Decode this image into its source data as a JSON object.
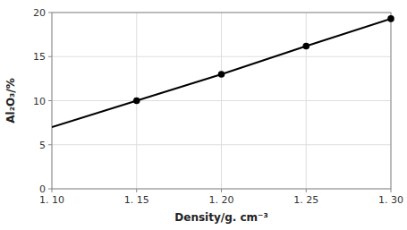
{
  "chart_data": {
    "type": "line",
    "x": [
      1.1,
      1.15,
      1.2,
      1.25,
      1.3
    ],
    "series": [
      {
        "type": "line",
        "color": "#000000",
        "line_style": "solid",
        "values": [
          7.0,
          10.0,
          13.0,
          16.2,
          19.3
        ]
      },
      {
        "type": "scatter",
        "color": "#000000",
        "marker": "circle",
        "values": [
          null,
          10.0,
          13.0,
          16.2,
          19.3
        ]
      }
    ],
    "xlim": [
      1.1,
      1.3
    ],
    "ylim": [
      0,
      20
    ],
    "xticks": [
      {
        "value": 1.1,
        "label": "1. 10"
      },
      {
        "value": 1.15,
        "label": "1. 15"
      },
      {
        "value": 1.2,
        "label": "1. 20"
      },
      {
        "value": 1.25,
        "label": "1. 25"
      },
      {
        "value": 1.3,
        "label": "1. 30"
      }
    ],
    "yticks": [
      0,
      5,
      10,
      15,
      20
    ],
    "xlabel": "Density/g. cm⁻³",
    "ylabel": "Al₂O₃/%",
    "grid": true
  }
}
